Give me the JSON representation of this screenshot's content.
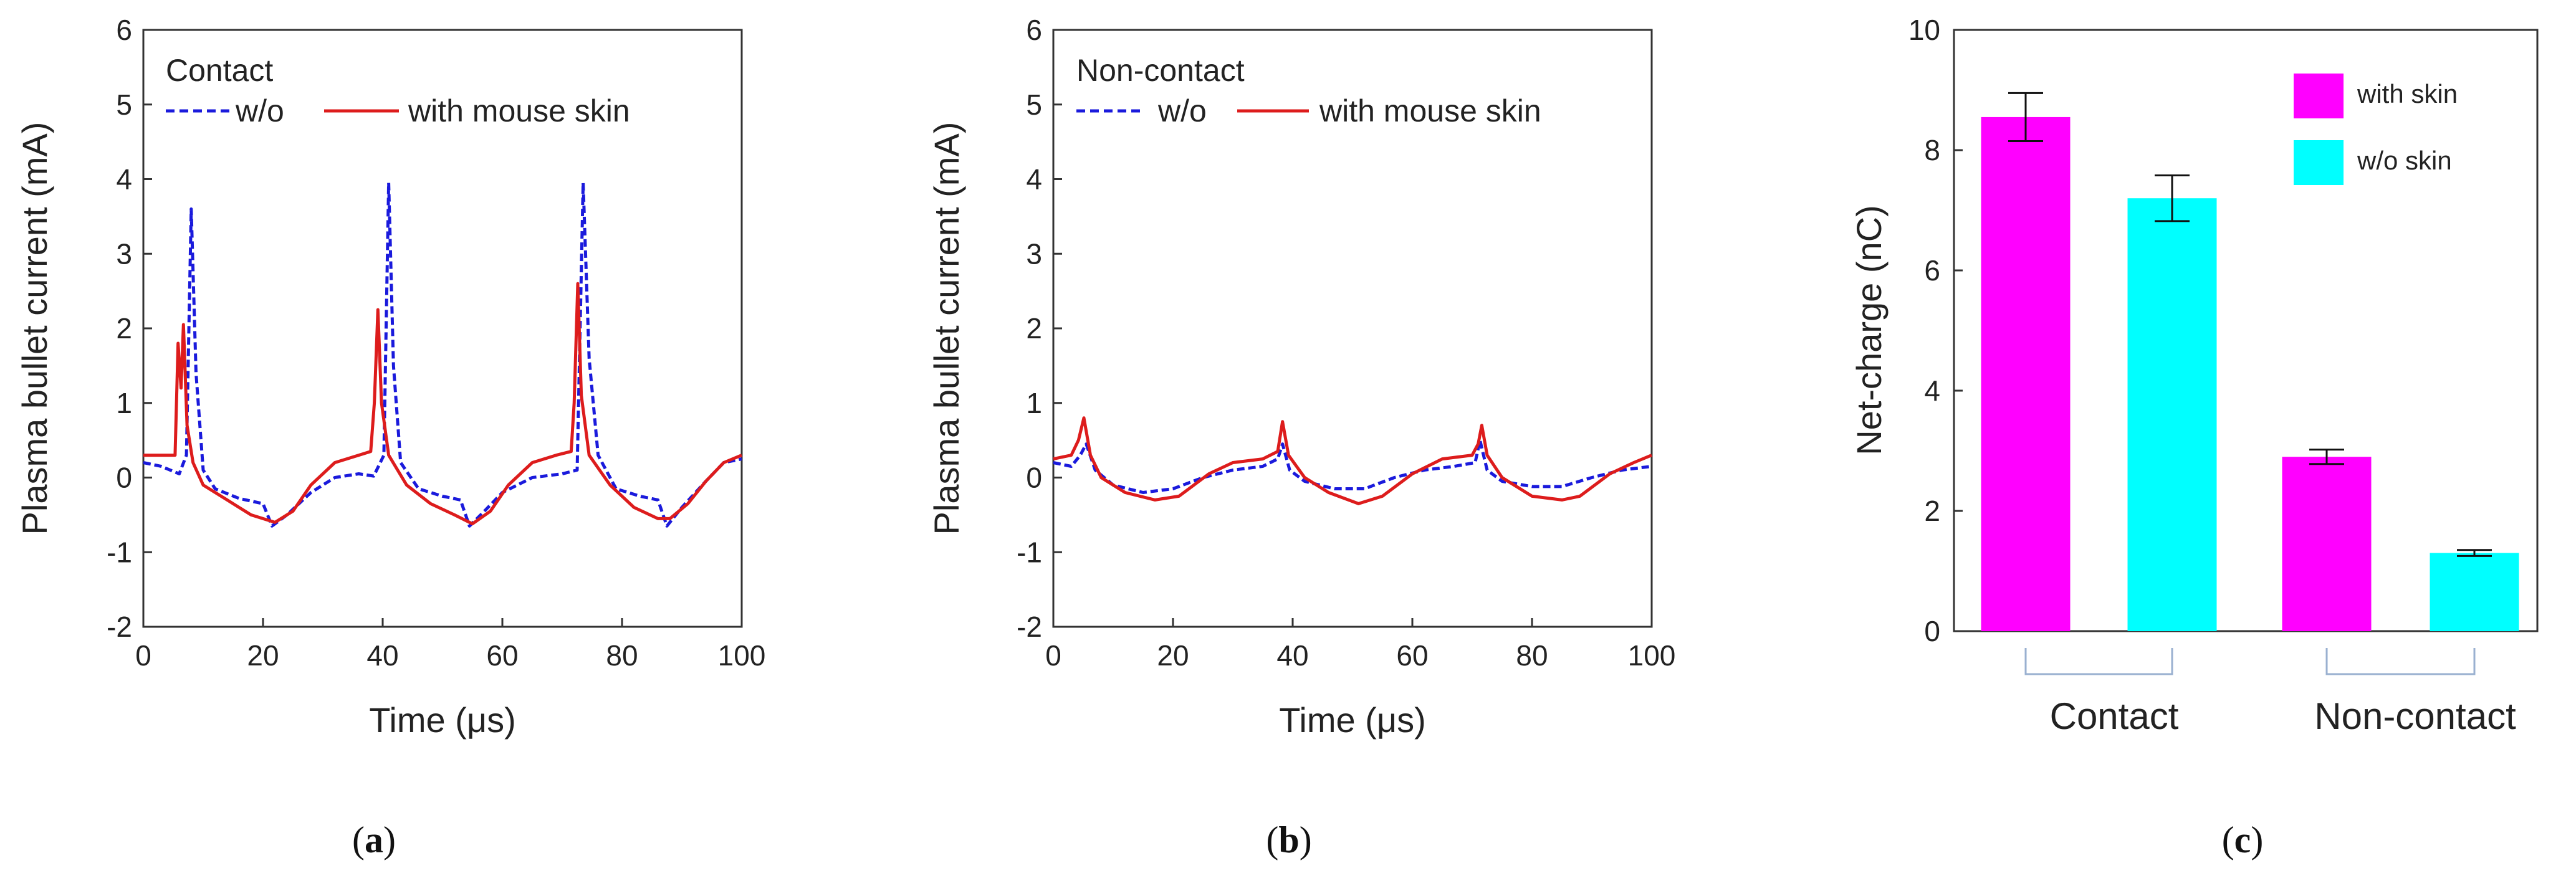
{
  "colors": {
    "with_skin_line": "#dd1c1c",
    "without_line": "#1a1adc",
    "with_skin_bar": "#ff00ff",
    "without_bar": "#00ffff",
    "group_bracket": "#9ab0d0"
  },
  "chart_data": [
    {
      "id": "a",
      "type": "line",
      "panel_label": "(a)",
      "panel_letter": "a",
      "annotation": "Contact",
      "xlabel": "Time (μs)",
      "ylabel": "Plasma bullet current (mA)",
      "xlim": [
        0,
        100
      ],
      "ylim": [
        -2,
        6
      ],
      "xticks": [
        0,
        20,
        40,
        60,
        80,
        100
      ],
      "yticks": [
        -2,
        -1,
        0,
        1,
        2,
        3,
        4,
        5,
        6
      ],
      "legend": [
        "w/o",
        "with mouse skin"
      ],
      "series": [
        {
          "name": "w/o",
          "color": "#1a1adc",
          "style": "dashed",
          "points": [
            [
              0,
              0.2
            ],
            [
              3,
              0.15
            ],
            [
              6,
              0.05
            ],
            [
              7.2,
              0.3
            ],
            [
              8,
              3.6
            ],
            [
              8.8,
              1.4
            ],
            [
              10,
              0.1
            ],
            [
              12,
              -0.15
            ],
            [
              16,
              -0.28
            ],
            [
              20,
              -0.35
            ],
            [
              21.5,
              -0.65
            ],
            [
              24,
              -0.5
            ],
            [
              28,
              -0.2
            ],
            [
              32,
              0.0
            ],
            [
              36,
              0.05
            ],
            [
              38.5,
              0.02
            ],
            [
              40.2,
              0.3
            ],
            [
              41,
              3.95
            ],
            [
              41.8,
              1.5
            ],
            [
              43,
              0.2
            ],
            [
              46,
              -0.15
            ],
            [
              50,
              -0.25
            ],
            [
              53,
              -0.3
            ],
            [
              54.5,
              -0.65
            ],
            [
              57,
              -0.45
            ],
            [
              60,
              -0.2
            ],
            [
              65,
              0.0
            ],
            [
              70,
              0.05
            ],
            [
              72.5,
              0.1
            ],
            [
              73.5,
              3.95
            ],
            [
              74.5,
              1.6
            ],
            [
              76,
              0.3
            ],
            [
              79,
              -0.15
            ],
            [
              83,
              -0.25
            ],
            [
              86,
              -0.3
            ],
            [
              87.5,
              -0.65
            ],
            [
              90,
              -0.4
            ],
            [
              94,
              -0.05
            ],
            [
              97,
              0.2
            ],
            [
              100,
              0.25
            ]
          ]
        },
        {
          "name": "with mouse skin",
          "color": "#dd1c1c",
          "style": "solid",
          "points": [
            [
              0,
              0.3
            ],
            [
              3,
              0.3
            ],
            [
              5.3,
              0.3
            ],
            [
              5.8,
              1.8
            ],
            [
              6.3,
              1.2
            ],
            [
              6.7,
              2.05
            ],
            [
              7.3,
              0.7
            ],
            [
              8.3,
              0.2
            ],
            [
              10,
              -0.1
            ],
            [
              14,
              -0.3
            ],
            [
              18,
              -0.5
            ],
            [
              22,
              -0.6
            ],
            [
              25,
              -0.45
            ],
            [
              28,
              -0.1
            ],
            [
              32,
              0.2
            ],
            [
              36,
              0.3
            ],
            [
              38,
              0.35
            ],
            [
              38.6,
              1.0
            ],
            [
              39.2,
              2.25
            ],
            [
              39.8,
              1.0
            ],
            [
              41,
              0.3
            ],
            [
              44,
              -0.1
            ],
            [
              48,
              -0.35
            ],
            [
              52,
              -0.5
            ],
            [
              55,
              -0.62
            ],
            [
              58,
              -0.45
            ],
            [
              61,
              -0.1
            ],
            [
              65,
              0.2
            ],
            [
              69,
              0.3
            ],
            [
              71.5,
              0.35
            ],
            [
              72,
              1.0
            ],
            [
              72.6,
              2.6
            ],
            [
              73.2,
              1.1
            ],
            [
              74.5,
              0.3
            ],
            [
              78,
              -0.1
            ],
            [
              82,
              -0.4
            ],
            [
              86,
              -0.55
            ],
            [
              88,
              -0.55
            ],
            [
              91,
              -0.35
            ],
            [
              94,
              -0.05
            ],
            [
              97,
              0.2
            ],
            [
              100,
              0.3
            ]
          ]
        }
      ]
    },
    {
      "id": "b",
      "type": "line",
      "panel_label": "(b)",
      "panel_letter": "b",
      "annotation": "Non-contact",
      "xlabel": "Time (μs)",
      "ylabel": "Plasma bullet current (mA)",
      "xlim": [
        0,
        100
      ],
      "ylim": [
        -2,
        6
      ],
      "xticks": [
        0,
        20,
        40,
        60,
        80,
        100
      ],
      "yticks": [
        -2,
        -1,
        0,
        1,
        2,
        3,
        4,
        5,
        6
      ],
      "legend": [
        "w/o",
        "with mouse skin"
      ],
      "series": [
        {
          "name": "w/o",
          "color": "#1a1adc",
          "style": "dashed",
          "points": [
            [
              0,
              0.2
            ],
            [
              3,
              0.15
            ],
            [
              4.5,
              0.3
            ],
            [
              5.5,
              0.45
            ],
            [
              7,
              0.1
            ],
            [
              10,
              -0.1
            ],
            [
              15,
              -0.2
            ],
            [
              20,
              -0.15
            ],
            [
              25,
              0.0
            ],
            [
              30,
              0.1
            ],
            [
              35,
              0.15
            ],
            [
              37.5,
              0.25
            ],
            [
              38.3,
              0.45
            ],
            [
              39.5,
              0.1
            ],
            [
              42,
              -0.05
            ],
            [
              47,
              -0.15
            ],
            [
              52,
              -0.15
            ],
            [
              57,
              0.0
            ],
            [
              62,
              0.1
            ],
            [
              67,
              0.15
            ],
            [
              70.5,
              0.2
            ],
            [
              71.3,
              0.5
            ],
            [
              72.5,
              0.1
            ],
            [
              75,
              -0.05
            ],
            [
              80,
              -0.12
            ],
            [
              85,
              -0.12
            ],
            [
              90,
              0.0
            ],
            [
              95,
              0.1
            ],
            [
              100,
              0.15
            ]
          ]
        },
        {
          "name": "with mouse skin",
          "color": "#dd1c1c",
          "style": "solid",
          "points": [
            [
              0,
              0.25
            ],
            [
              3,
              0.3
            ],
            [
              4.2,
              0.5
            ],
            [
              5.1,
              0.8
            ],
            [
              6.2,
              0.3
            ],
            [
              8,
              0.0
            ],
            [
              12,
              -0.2
            ],
            [
              17,
              -0.3
            ],
            [
              21,
              -0.25
            ],
            [
              26,
              0.05
            ],
            [
              30,
              0.2
            ],
            [
              35,
              0.25
            ],
            [
              37.5,
              0.35
            ],
            [
              38.3,
              0.75
            ],
            [
              39.3,
              0.3
            ],
            [
              42,
              0.0
            ],
            [
              46,
              -0.2
            ],
            [
              51,
              -0.35
            ],
            [
              55,
              -0.25
            ],
            [
              60,
              0.05
            ],
            [
              65,
              0.25
            ],
            [
              70,
              0.3
            ],
            [
              71,
              0.45
            ],
            [
              71.6,
              0.7
            ],
            [
              72.5,
              0.3
            ],
            [
              75,
              0.0
            ],
            [
              80,
              -0.25
            ],
            [
              85,
              -0.3
            ],
            [
              88,
              -0.25
            ],
            [
              93,
              0.05
            ],
            [
              97,
              0.2
            ],
            [
              100,
              0.3
            ]
          ]
        }
      ]
    },
    {
      "id": "c",
      "type": "bar",
      "panel_label": "(c)",
      "panel_letter": "c",
      "ylabel": "Net-charge (nC)",
      "ylim": [
        0,
        10
      ],
      "yticks": [
        0,
        2,
        4,
        6,
        8,
        10
      ],
      "categories": [
        "Contact",
        "Non-contact"
      ],
      "legend": [
        "with skin",
        "w/o skin"
      ],
      "series": [
        {
          "name": "with skin",
          "color": "#ff00ff",
          "values": [
            8.55,
            2.9
          ],
          "errors": [
            0.4,
            0.12
          ]
        },
        {
          "name": "w/o skin",
          "color": "#00ffff",
          "values": [
            7.2,
            1.3
          ],
          "errors": [
            0.38,
            0.05
          ]
        }
      ]
    }
  ]
}
